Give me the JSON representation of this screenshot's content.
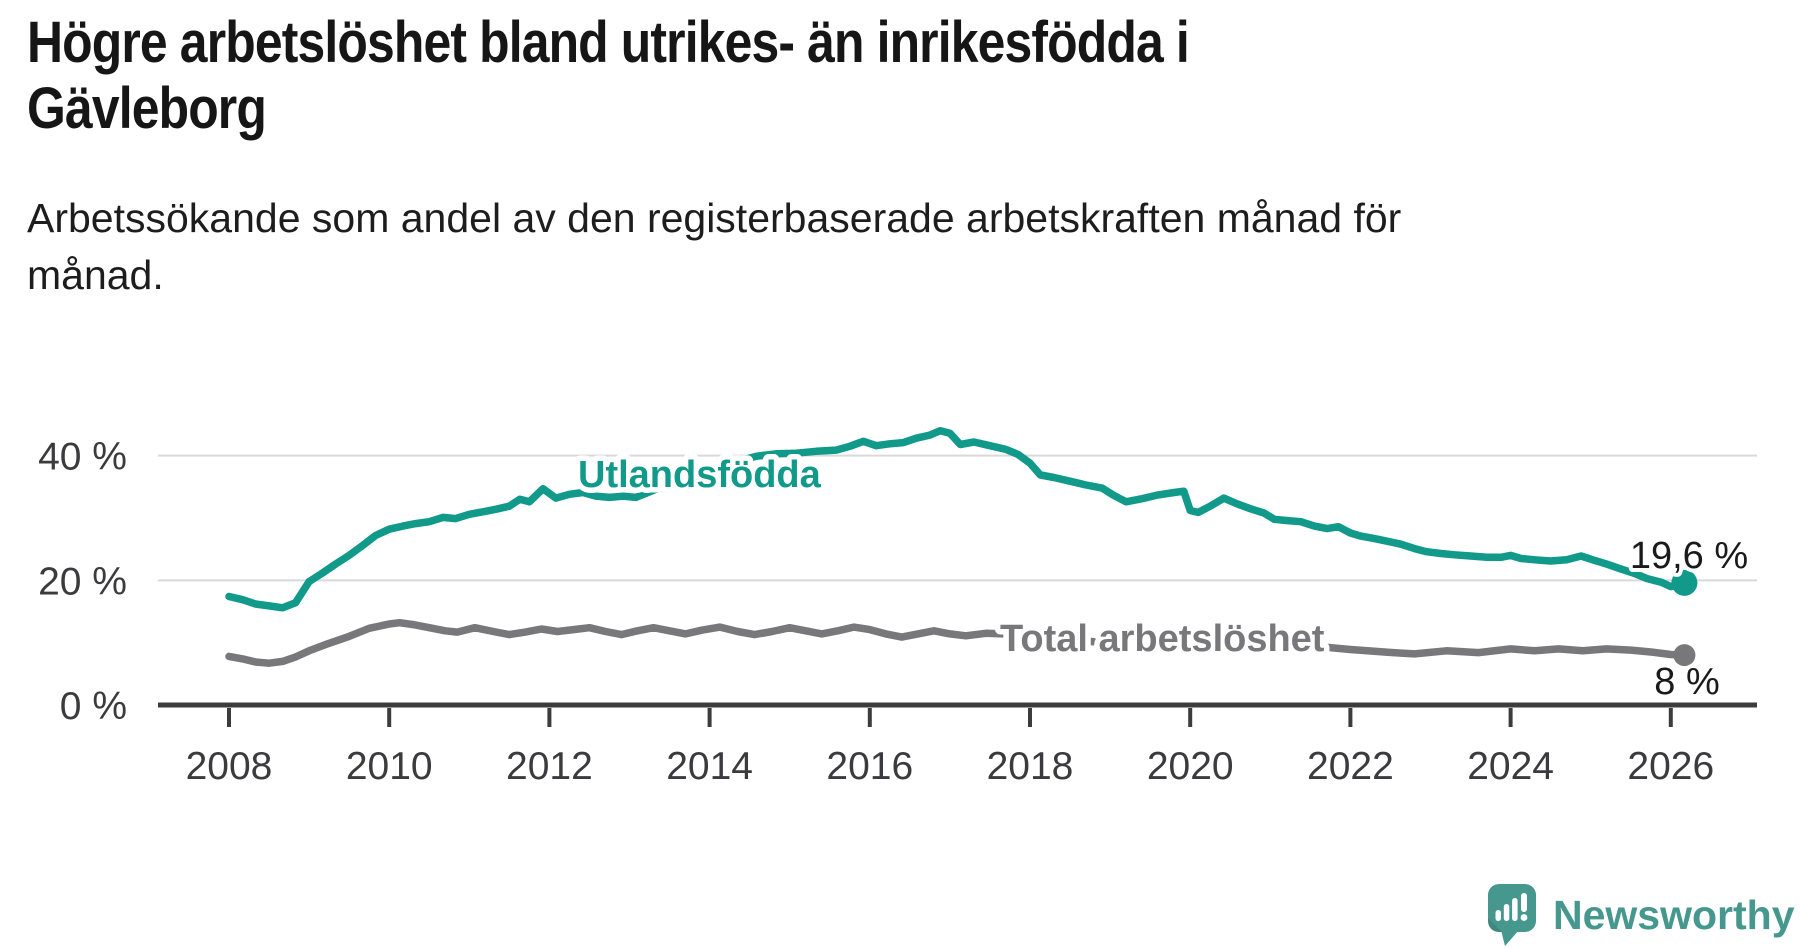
{
  "header": {
    "title_lines": [
      "Högre arbetslöshet bland utrikes- än inrikesfödda i",
      "Gävleborg"
    ],
    "subtitle_lines": [
      "Arbetssökande som andel av den registerbaserade arbetskraften månad för",
      "månad."
    ]
  },
  "footer": {
    "brand": "Newsworthy",
    "logo_icon": "speech-bubble-bar-chart"
  },
  "colors": {
    "teal_series": "#11998a",
    "gray_series": "#787779",
    "axis": "#3c3c3c",
    "grid": "#d9d9d9",
    "tick_label": "#3b3a3c",
    "annotation": "#1a1a1a",
    "brand_teal": "#46988e"
  },
  "chart_data": {
    "type": "line",
    "title": "Högre arbetslöshet bland utrikes- än inrikesfödda i Gävleborg",
    "subtitle": "Arbetssökande som andel av den registerbaserade arbetskraften månad för månad.",
    "xlabel": "",
    "ylabel": "",
    "xlim": [
      2007.1,
      2027.1
    ],
    "ylim": [
      0,
      47
    ],
    "grid": "horizontal",
    "legend_position": "inline-labels",
    "x_ticks": [
      {
        "value": 2008,
        "label": "2008"
      },
      {
        "value": 2010,
        "label": "2010"
      },
      {
        "value": 2012,
        "label": "2012"
      },
      {
        "value": 2014,
        "label": "2014"
      },
      {
        "value": 2016,
        "label": "2016"
      },
      {
        "value": 2018,
        "label": "2018"
      },
      {
        "value": 2020,
        "label": "2020"
      },
      {
        "value": 2022,
        "label": "2022"
      },
      {
        "value": 2024,
        "label": "2024"
      },
      {
        "value": 2026,
        "label": "2026"
      }
    ],
    "y_ticks": [
      {
        "value": 40,
        "label": "40 %"
      },
      {
        "value": 20,
        "label": "20 %"
      },
      {
        "value": 0,
        "label": "0 %"
      }
    ],
    "series": [
      {
        "name": "Utlandsfödda",
        "label_text": "Utlandsfödda",
        "end_label": "19,6 %",
        "end_value": 19.6,
        "color": "#11998a",
        "points": [
          [
            2008.0,
            17.4
          ],
          [
            2008.17,
            16.9
          ],
          [
            2008.33,
            16.2
          ],
          [
            2008.5,
            15.9
          ],
          [
            2008.67,
            15.6
          ],
          [
            2008.83,
            16.4
          ],
          [
            2009.0,
            19.8
          ],
          [
            2009.17,
            21.2
          ],
          [
            2009.33,
            22.6
          ],
          [
            2009.5,
            24.0
          ],
          [
            2009.67,
            25.6
          ],
          [
            2009.83,
            27.2
          ],
          [
            2010.0,
            28.2
          ],
          [
            2010.17,
            28.7
          ],
          [
            2010.33,
            29.1
          ],
          [
            2010.5,
            29.4
          ],
          [
            2010.67,
            30.1
          ],
          [
            2010.83,
            29.9
          ],
          [
            2011.0,
            30.6
          ],
          [
            2011.17,
            31.0
          ],
          [
            2011.33,
            31.4
          ],
          [
            2011.5,
            31.9
          ],
          [
            2011.63,
            33.0
          ],
          [
            2011.75,
            32.6
          ],
          [
            2011.92,
            34.7
          ],
          [
            2012.08,
            33.2
          ],
          [
            2012.25,
            33.8
          ],
          [
            2012.42,
            34.1
          ],
          [
            2012.58,
            33.5
          ],
          [
            2012.75,
            33.3
          ],
          [
            2012.92,
            33.5
          ],
          [
            2013.08,
            33.3
          ],
          [
            2013.33,
            34.6
          ],
          [
            2013.58,
            35.8
          ],
          [
            2013.83,
            36.9
          ],
          [
            2014.08,
            38.0
          ],
          [
            2014.33,
            39.0
          ],
          [
            2014.58,
            39.9
          ],
          [
            2014.83,
            40.3
          ],
          [
            2015.08,
            40.4
          ],
          [
            2015.33,
            40.7
          ],
          [
            2015.58,
            40.9
          ],
          [
            2015.75,
            41.5
          ],
          [
            2015.92,
            42.3
          ],
          [
            2016.08,
            41.6
          ],
          [
            2016.25,
            41.9
          ],
          [
            2016.42,
            42.1
          ],
          [
            2016.58,
            42.8
          ],
          [
            2016.75,
            43.3
          ],
          [
            2016.88,
            44.0
          ],
          [
            2017.0,
            43.6
          ],
          [
            2017.13,
            41.8
          ],
          [
            2017.3,
            42.2
          ],
          [
            2017.5,
            41.6
          ],
          [
            2017.7,
            41.0
          ],
          [
            2017.85,
            40.2
          ],
          [
            2018.0,
            38.8
          ],
          [
            2018.13,
            36.9
          ],
          [
            2018.3,
            36.5
          ],
          [
            2018.5,
            35.9
          ],
          [
            2018.7,
            35.3
          ],
          [
            2018.9,
            34.8
          ],
          [
            2019.05,
            33.6
          ],
          [
            2019.2,
            32.6
          ],
          [
            2019.4,
            33.1
          ],
          [
            2019.6,
            33.7
          ],
          [
            2019.8,
            34.1
          ],
          [
            2019.92,
            34.3
          ],
          [
            2020.0,
            31.2
          ],
          [
            2020.1,
            30.9
          ],
          [
            2020.25,
            31.9
          ],
          [
            2020.42,
            33.2
          ],
          [
            2020.58,
            32.3
          ],
          [
            2020.75,
            31.5
          ],
          [
            2020.92,
            30.8
          ],
          [
            2021.05,
            29.8
          ],
          [
            2021.2,
            29.6
          ],
          [
            2021.38,
            29.4
          ],
          [
            2021.55,
            28.7
          ],
          [
            2021.71,
            28.3
          ],
          [
            2021.85,
            28.6
          ],
          [
            2022.0,
            27.6
          ],
          [
            2022.13,
            27.1
          ],
          [
            2022.3,
            26.7
          ],
          [
            2022.45,
            26.3
          ],
          [
            2022.63,
            25.8
          ],
          [
            2022.8,
            25.1
          ],
          [
            2022.95,
            24.6
          ],
          [
            2023.13,
            24.3
          ],
          [
            2023.3,
            24.1
          ],
          [
            2023.5,
            23.9
          ],
          [
            2023.7,
            23.7
          ],
          [
            2023.88,
            23.7
          ],
          [
            2024.0,
            24.0
          ],
          [
            2024.13,
            23.5
          ],
          [
            2024.3,
            23.3
          ],
          [
            2024.5,
            23.1
          ],
          [
            2024.7,
            23.3
          ],
          [
            2024.88,
            23.9
          ],
          [
            2025.05,
            23.2
          ],
          [
            2025.2,
            22.6
          ],
          [
            2025.38,
            21.8
          ],
          [
            2025.55,
            21.1
          ],
          [
            2025.7,
            20.3
          ],
          [
            2025.88,
            19.7
          ],
          [
            2026.0,
            19.0
          ],
          [
            2026.17,
            19.6
          ]
        ]
      },
      {
        "name": "Total arbetslöshet",
        "label_text": "Total arbetslöshet",
        "end_label": "8 %",
        "end_value": 8.0,
        "color": "#787779",
        "points": [
          [
            2008.0,
            7.8
          ],
          [
            2008.17,
            7.4
          ],
          [
            2008.33,
            6.9
          ],
          [
            2008.5,
            6.7
          ],
          [
            2008.67,
            7.0
          ],
          [
            2008.83,
            7.7
          ],
          [
            2009.0,
            8.7
          ],
          [
            2009.25,
            9.9
          ],
          [
            2009.5,
            11.0
          ],
          [
            2009.75,
            12.3
          ],
          [
            2010.0,
            13.0
          ],
          [
            2010.13,
            13.2
          ],
          [
            2010.3,
            12.9
          ],
          [
            2010.5,
            12.4
          ],
          [
            2010.7,
            11.9
          ],
          [
            2010.85,
            11.7
          ],
          [
            2011.07,
            12.4
          ],
          [
            2011.3,
            11.8
          ],
          [
            2011.5,
            11.3
          ],
          [
            2011.7,
            11.7
          ],
          [
            2011.9,
            12.2
          ],
          [
            2012.1,
            11.8
          ],
          [
            2012.3,
            12.1
          ],
          [
            2012.5,
            12.4
          ],
          [
            2012.7,
            11.8
          ],
          [
            2012.9,
            11.3
          ],
          [
            2013.1,
            11.9
          ],
          [
            2013.3,
            12.4
          ],
          [
            2013.5,
            11.9
          ],
          [
            2013.7,
            11.4
          ],
          [
            2013.9,
            12.0
          ],
          [
            2014.13,
            12.5
          ],
          [
            2014.35,
            11.8
          ],
          [
            2014.56,
            11.3
          ],
          [
            2014.78,
            11.8
          ],
          [
            2015.0,
            12.4
          ],
          [
            2015.2,
            11.9
          ],
          [
            2015.4,
            11.4
          ],
          [
            2015.6,
            11.9
          ],
          [
            2015.8,
            12.5
          ],
          [
            2016.0,
            12.1
          ],
          [
            2016.2,
            11.4
          ],
          [
            2016.4,
            10.9
          ],
          [
            2016.6,
            11.4
          ],
          [
            2016.8,
            11.9
          ],
          [
            2017.0,
            11.4
          ],
          [
            2017.2,
            11.1
          ],
          [
            2017.45,
            11.5
          ],
          [
            2017.66,
            11.4
          ],
          [
            2018.0,
            10.9
          ],
          [
            2018.5,
            10.4
          ],
          [
            2019.0,
            10.0
          ],
          [
            2019.5,
            9.8
          ],
          [
            2020.0,
            9.6
          ],
          [
            2020.3,
            10.5
          ],
          [
            2020.6,
            10.8
          ],
          [
            2021.0,
            10.3
          ],
          [
            2021.5,
            9.5
          ],
          [
            2022.0,
            8.9
          ],
          [
            2022.53,
            8.4
          ],
          [
            2022.8,
            8.2
          ],
          [
            2023.2,
            8.7
          ],
          [
            2023.6,
            8.4
          ],
          [
            2024.0,
            9.0
          ],
          [
            2024.3,
            8.7
          ],
          [
            2024.6,
            9.0
          ],
          [
            2024.9,
            8.7
          ],
          [
            2025.2,
            9.0
          ],
          [
            2025.5,
            8.8
          ],
          [
            2025.75,
            8.5
          ],
          [
            2026.0,
            8.1
          ],
          [
            2026.17,
            8.0
          ]
        ]
      }
    ]
  }
}
